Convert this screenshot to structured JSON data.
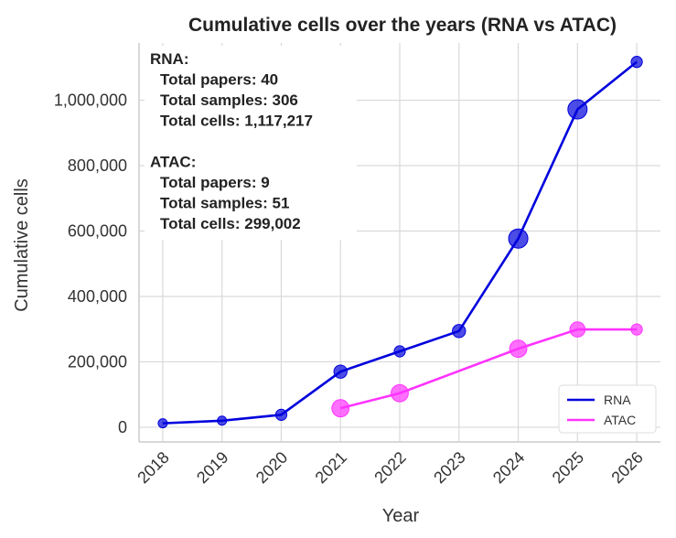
{
  "chart_data": {
    "type": "line",
    "title": "Cumulative cells over the years (RNA vs ATAC)",
    "xlabel": "Year",
    "ylabel": "Cumulative cells",
    "x": [
      2018,
      2019,
      2020,
      2021,
      2022,
      2023,
      2024,
      2025,
      2026
    ],
    "xlim": [
      2017.6,
      2026.4
    ],
    "ylim": [
      -45000,
      1175000
    ],
    "yticks": [
      0,
      200000,
      400000,
      600000,
      800000,
      1000000
    ],
    "ytick_labels": [
      "0",
      "200,000",
      "400,000",
      "600,000",
      "800,000",
      "1,000,000"
    ],
    "xtick_labels": [
      "2018",
      "2019",
      "2020",
      "2021",
      "2022",
      "2023",
      "2024",
      "2025",
      "2026"
    ],
    "grid": true,
    "legend": "lower-right",
    "series": [
      {
        "name": "RNA",
        "color": "#0000dd",
        "x": [
          2018,
          2019,
          2020,
          2021,
          2022,
          2023,
          2024,
          2025,
          2026
        ],
        "values": [
          12000,
          20000,
          38000,
          170000,
          232000,
          294000,
          577000,
          972000,
          1117217
        ],
        "marker_weight": [
          1,
          1,
          2,
          3,
          2,
          3,
          6,
          6,
          2
        ]
      },
      {
        "name": "ATAC",
        "color": "#ff33ff",
        "x": [
          2021,
          2022,
          2024,
          2025,
          2026
        ],
        "values": [
          58000,
          104000,
          240000,
          299002,
          299002
        ],
        "marker_weight": [
          5,
          5,
          5,
          4,
          2
        ]
      }
    ],
    "annotation_lines": [
      "RNA:",
      "  Total papers: 40",
      "  Total samples: 306",
      "  Total cells: 1,117,217",
      "",
      "ATAC:",
      "  Total papers: 9",
      "  Total samples: 51",
      "  Total cells: 299,002"
    ]
  }
}
